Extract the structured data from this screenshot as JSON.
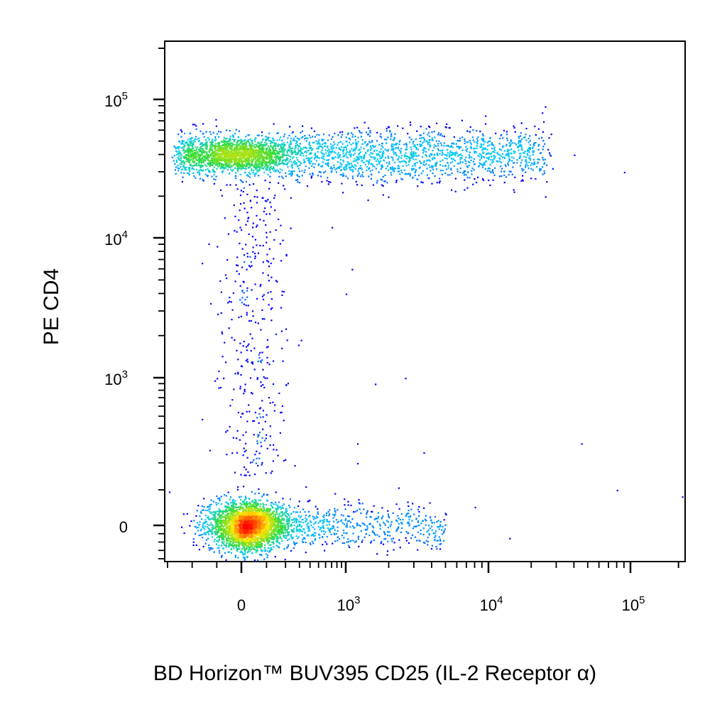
{
  "chart_data": {
    "type": "scatter",
    "title": "",
    "xlabel": "BD Horizon™ BUV395 CD25 (IL-2 Receptor α)",
    "ylabel": "PE CD4",
    "x_scale": "biexponential",
    "y_scale": "biexponential",
    "xlim": [
      -300,
      220000
    ],
    "ylim": [
      -400,
      220000
    ],
    "x_ticks": [
      {
        "base": "0",
        "exp": ""
      },
      {
        "base": "10",
        "exp": "3"
      },
      {
        "base": "10",
        "exp": "4"
      },
      {
        "base": "10",
        "exp": "5"
      }
    ],
    "y_ticks": [
      {
        "base": "0",
        "exp": ""
      },
      {
        "base": "10",
        "exp": "3"
      },
      {
        "base": "10",
        "exp": "4"
      },
      {
        "base": "10",
        "exp": "5"
      }
    ],
    "x_tick_values": [
      0,
      1000,
      10000,
      100000
    ],
    "y_tick_values": [
      0,
      1000,
      10000,
      100000
    ],
    "grid": false,
    "legend": "none",
    "color_mode": "density (blue → cyan → green → yellow → red)",
    "populations": [
      {
        "description": "CD4- CD25- (lower-left)",
        "x_center": 20,
        "y_center": 0,
        "relative_density": "highest"
      },
      {
        "description": "CD4+ CD25- to CD25+ (upper band)",
        "x_range": [
          0,
          30000
        ],
        "y_center": 40000,
        "relative_density": "high"
      },
      {
        "description": "CD4- CD25+ tail (lower band)",
        "x_range": [
          0,
          5000
        ],
        "y_center": 0,
        "relative_density": "low"
      }
    ]
  },
  "colors": {
    "low": "#0000ff",
    "mid_low": "#00c8ff",
    "mid": "#33dd33",
    "mid_high": "#ffe600",
    "high": "#ff0000",
    "axis": "#000000"
  }
}
